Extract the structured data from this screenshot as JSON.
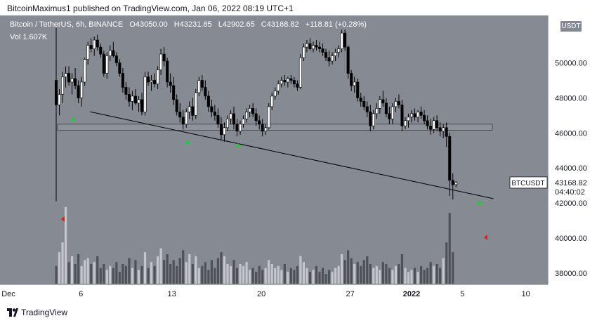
{
  "publisher": {
    "text": "BitcoinMaximus1 published on TradingView.com, Jan 06, 2022 08:19 UTC+1"
  },
  "legend": {
    "symbol": "Bitcoin / TetherUS, 6h, BINANCE",
    "open_label": "O",
    "open": "43050.00",
    "high_label": "H",
    "high": "43231.85",
    "low_label": "L",
    "low": "42902.65",
    "close_label": "C",
    "close": "43168.82",
    "change": "+118.81 (+0.28%)",
    "volume_label": "Vol",
    "volume": "1.607K"
  },
  "currency_badge": "USDT",
  "price_label": {
    "symbol": "BTCUSDT",
    "price": "43168.82",
    "countdown": "04:40:02"
  },
  "footer": {
    "brand": "TradingView"
  },
  "colors": {
    "background": "#858a93",
    "up": "#ffffff",
    "down": "#000000",
    "support_zone": "#8e939b",
    "arrow_up": "#26c740",
    "arrow_down": "#e01e1e",
    "volume_up": "#c4c6cb",
    "volume_down": "#4e5257"
  },
  "chart_data": {
    "type": "candlestick",
    "title": "Bitcoin / TetherUS, 6h, BINANCE",
    "y_axis": {
      "ticks": [
        38000,
        40000,
        42000,
        44000,
        46000,
        48000,
        50000
      ],
      "range": [
        37500,
        52500
      ]
    },
    "x_axis": {
      "ticks": [
        "Dec",
        "6",
        "13",
        "20",
        "27",
        "2022",
        "5",
        "10"
      ]
    },
    "support_zone": {
      "low": 46150,
      "high": 46500
    },
    "trendline": {
      "start": {
        "date": "Dec 5",
        "price": 47250
      },
      "end": {
        "date": "Jan 7",
        "price": 42250
      }
    },
    "markers_up": [
      {
        "date": "Dec 5",
        "price": 46800
      },
      {
        "date": "Dec 14",
        "price": 45500
      },
      {
        "date": "Dec 18",
        "price": 45300
      },
      {
        "date": "Jan 6",
        "price": 42050
      }
    ],
    "markers_down_volume": [
      "Dec 4",
      "Jan 6"
    ],
    "candles": [
      [
        49000,
        52000,
        42100,
        47600
      ],
      [
        47600,
        48500,
        47000,
        48200
      ],
      [
        48200,
        49500,
        47700,
        49200
      ],
      [
        49200,
        49800,
        48600,
        49400
      ],
      [
        49400,
        49800,
        48700,
        48900
      ],
      [
        48900,
        49400,
        48200,
        49100
      ],
      [
        49100,
        49700,
        48500,
        48700
      ],
      [
        48700,
        49000,
        47700,
        48000
      ],
      [
        48000,
        49200,
        47500,
        48900
      ],
      [
        48900,
        50300,
        48700,
        50200
      ],
      [
        50200,
        51200,
        49900,
        51000
      ],
      [
        51000,
        51400,
        50600,
        50800
      ],
      [
        50800,
        51500,
        50400,
        51300
      ],
      [
        51300,
        51600,
        50700,
        50900
      ],
      [
        50900,
        51100,
        50300,
        50500
      ],
      [
        50500,
        50700,
        49200,
        49400
      ],
      [
        49400,
        50600,
        49100,
        50400
      ],
      [
        50400,
        51000,
        50100,
        50700
      ],
      [
        50700,
        51200,
        50300,
        50400
      ],
      [
        50400,
        50600,
        49800,
        50000
      ],
      [
        50000,
        50200,
        49200,
        49400
      ],
      [
        49400,
        49700,
        48300,
        48600
      ],
      [
        48600,
        48900,
        47900,
        48200
      ],
      [
        48200,
        48600,
        47500,
        47800
      ],
      [
        47800,
        48400,
        47300,
        48100
      ],
      [
        48100,
        48500,
        47600,
        47700
      ],
      [
        47700,
        48100,
        47200,
        47900
      ],
      [
        47900,
        48300,
        47000,
        47200
      ],
      [
        47200,
        49500,
        47000,
        49200
      ],
      [
        49200,
        49500,
        48700,
        48900
      ],
      [
        48900,
        49300,
        48400,
        49000
      ],
      [
        49000,
        49400,
        48600,
        48800
      ],
      [
        48800,
        49800,
        48500,
        49600
      ],
      [
        49600,
        50800,
        49300,
        50500
      ],
      [
        50500,
        50900,
        49800,
        50100
      ],
      [
        50100,
        50300,
        48600,
        48900
      ],
      [
        48900,
        49400,
        48300,
        48700
      ],
      [
        48700,
        49200,
        47600,
        47900
      ],
      [
        47900,
        48200,
        47000,
        47200
      ],
      [
        47200,
        47700,
        46600,
        46900
      ],
      [
        46900,
        47300,
        46200,
        46500
      ],
      [
        46500,
        47400,
        46300,
        47200
      ],
      [
        47200,
        47800,
        46800,
        47500
      ],
      [
        47500,
        48000,
        46700,
        47000
      ],
      [
        47000,
        48500,
        46800,
        48300
      ],
      [
        48300,
        49200,
        48100,
        49000
      ],
      [
        49000,
        49300,
        48400,
        48600
      ],
      [
        48600,
        49000,
        47900,
        48100
      ],
      [
        48100,
        48400,
        47200,
        47500
      ],
      [
        47500,
        47900,
        46900,
        47200
      ],
      [
        47200,
        47600,
        46700,
        47000
      ],
      [
        47000,
        47400,
        46300,
        46500
      ],
      [
        46500,
        46900,
        45600,
        45900
      ],
      [
        45900,
        46600,
        45500,
        46300
      ],
      [
        46300,
        47000,
        46100,
        46800
      ],
      [
        46800,
        47300,
        46500,
        47100
      ],
      [
        47100,
        47500,
        46200,
        46500
      ],
      [
        46500,
        46800,
        45800,
        46100
      ],
      [
        46100,
        46700,
        45900,
        46500
      ],
      [
        46500,
        47000,
        46300,
        46800
      ],
      [
        46800,
        47400,
        46600,
        47200
      ],
      [
        47200,
        47600,
        46900,
        47400
      ],
      [
        47400,
        47700,
        46900,
        47100
      ],
      [
        47100,
        47400,
        46400,
        46700
      ],
      [
        46700,
        47000,
        46200,
        46500
      ],
      [
        46500,
        46800,
        45800,
        46100
      ],
      [
        46100,
        46500,
        45900,
        46300
      ],
      [
        46300,
        47700,
        46200,
        47500
      ],
      [
        47500,
        48300,
        47300,
        48100
      ],
      [
        48100,
        48600,
        47900,
        48400
      ],
      [
        48400,
        49000,
        48200,
        48800
      ],
      [
        48800,
        49200,
        48600,
        49000
      ],
      [
        49000,
        49300,
        48700,
        48900
      ],
      [
        48900,
        49200,
        48600,
        49100
      ],
      [
        49100,
        49300,
        48800,
        49000
      ],
      [
        49000,
        49200,
        48600,
        48800
      ],
      [
        48800,
        49000,
        48400,
        48600
      ],
      [
        48600,
        50500,
        48500,
        50300
      ],
      [
        50300,
        51100,
        50100,
        50900
      ],
      [
        50900,
        51300,
        50600,
        51100
      ],
      [
        51100,
        51400,
        50700,
        50800
      ],
      [
        50800,
        51200,
        50600,
        51000
      ],
      [
        51000,
        51300,
        50700,
        50900
      ],
      [
        50900,
        51200,
        50600,
        50800
      ],
      [
        50800,
        51100,
        50400,
        50600
      ],
      [
        50600,
        50800,
        50100,
        50300
      ],
      [
        50300,
        50700,
        49800,
        50100
      ],
      [
        50100,
        50600,
        49900,
        50400
      ],
      [
        50400,
        50800,
        50100,
        50600
      ],
      [
        50600,
        51000,
        50300,
        50800
      ],
      [
        50800,
        51900,
        50600,
        51700
      ],
      [
        51700,
        51900,
        50700,
        50900
      ],
      [
        50900,
        51000,
        49100,
        49400
      ],
      [
        49400,
        49600,
        48400,
        48700
      ],
      [
        48700,
        49200,
        48300,
        48900
      ],
      [
        48900,
        49100,
        47800,
        48000
      ],
      [
        48000,
        48300,
        47500,
        47800
      ],
      [
        47800,
        48100,
        47300,
        47500
      ],
      [
        47500,
        47800,
        46900,
        47200
      ],
      [
        47200,
        47600,
        46100,
        46400
      ],
      [
        46400,
        47300,
        46200,
        47100
      ],
      [
        47100,
        47700,
        46800,
        47400
      ],
      [
        47400,
        48100,
        47100,
        47900
      ],
      [
        47900,
        48400,
        47500,
        47700
      ],
      [
        47700,
        48000,
        46900,
        47100
      ],
      [
        47100,
        47500,
        46500,
        46800
      ],
      [
        46800,
        47700,
        46500,
        47500
      ],
      [
        47500,
        48000,
        47200,
        47800
      ],
      [
        47800,
        48200,
        47400,
        47600
      ],
      [
        47600,
        47900,
        46100,
        46400
      ],
      [
        46400,
        46900,
        46200,
        46700
      ],
      [
        46700,
        47100,
        46300,
        46900
      ],
      [
        46900,
        47300,
        46600,
        47100
      ],
      [
        47100,
        47400,
        46700,
        46900
      ],
      [
        46900,
        47300,
        46600,
        47200
      ],
      [
        47200,
        47500,
        46800,
        47000
      ],
      [
        47000,
        47300,
        46500,
        46700
      ],
      [
        46700,
        47000,
        46200,
        46400
      ],
      [
        46400,
        46800,
        45900,
        46200
      ],
      [
        46200,
        46900,
        46000,
        46700
      ],
      [
        46700,
        47000,
        46100,
        46300
      ],
      [
        46300,
        46600,
        45800,
        46100
      ],
      [
        46100,
        46500,
        45700,
        46300
      ],
      [
        46300,
        46600,
        45200,
        45800
      ],
      [
        45800,
        46000,
        42400,
        43300
      ],
      [
        43300,
        43700,
        42200,
        43050
      ],
      [
        43050,
        43231.85,
        42902.65,
        43168.82
      ]
    ],
    "volumes": [
      0.9,
      1.6,
      2.1,
      3.9,
      1.1,
      1.4,
      1.0,
      1.5,
      0.9,
      1.2,
      1.3,
      1.0,
      1.1,
      1.4,
      0.8,
      1.0,
      0.7,
      0.9,
      0.8,
      1.1,
      0.6,
      1.0,
      0.9,
      1.3,
      0.8,
      1.2,
      0.7,
      0.9,
      1.6,
      0.8,
      1.1,
      0.9,
      1.4,
      1.8,
      1.2,
      1.5,
      1.0,
      1.2,
      0.9,
      1.3,
      1.7,
      1.1,
      1.5,
      1.0,
      1.4,
      0.8,
      0.9,
      1.1,
      0.7,
      1.2,
      0.8,
      1.3,
      1.6,
      1.4,
      1.0,
      0.9,
      1.2,
      0.8,
      1.0,
      0.9,
      1.1,
      0.7,
      0.8,
      0.6,
      0.9,
      0.7,
      0.8,
      1.2,
      1.0,
      0.8,
      0.9,
      0.7,
      1.0,
      0.6,
      0.8,
      0.7,
      0.9,
      1.4,
      1.1,
      0.8,
      0.6,
      0.7,
      0.9,
      0.6,
      0.8,
      0.5,
      0.7,
      0.6,
      0.8,
      0.9,
      1.5,
      1.2,
      1.7,
      1.3,
      1.0,
      1.1,
      0.9,
      1.2,
      1.4,
      1.0,
      0.8,
      0.9,
      0.7,
      1.1,
      1.0,
      0.8,
      0.7,
      0.9,
      1.0,
      1.5,
      0.8,
      0.6,
      0.7,
      0.8,
      0.6,
      0.9,
      0.7,
      0.8,
      1.1,
      0.9,
      1.0,
      0.8,
      1.3,
      2.1,
      3.6,
      1.6
    ]
  }
}
